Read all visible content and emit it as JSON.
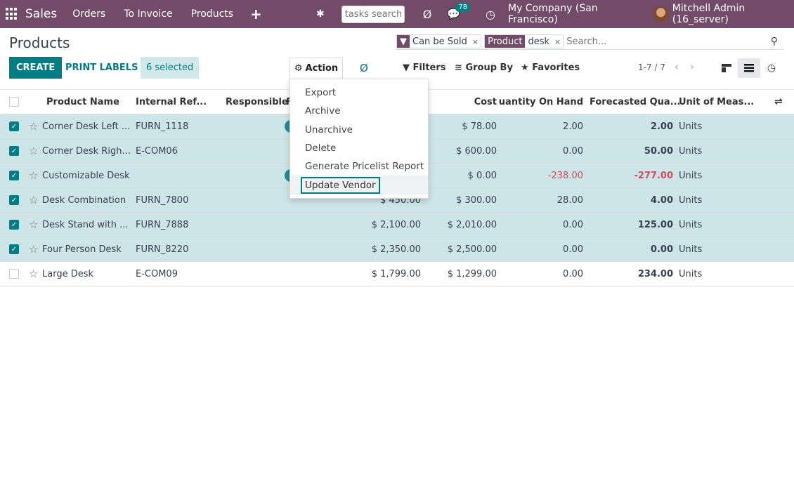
{
  "navbar": {
    "app": "Sales",
    "items": [
      "Orders",
      "To Invoice",
      "Products"
    ],
    "plus": "+",
    "bug": "✱",
    "task_search_placeholder": "tasks search",
    "messages_count": "78",
    "company": "My Company (San Francisco)",
    "user": "Mitchell Admin (16_server)"
  },
  "page_title": "Products",
  "search": {
    "facets": [
      {
        "label": "▼",
        "value": "Can be Sold"
      },
      {
        "label": "Product",
        "value": "desk"
      }
    ],
    "placeholder": "Search..."
  },
  "buttons": {
    "create": "CREATE",
    "print_labels": "PRINT LABELS",
    "selected": "6 selected",
    "action": "Action",
    "filters": "Filters",
    "group_by": "Group By",
    "favorites": "Favorites"
  },
  "pager": "1-7 / 7",
  "columns": {
    "product_name": "Product Name",
    "internal_ref": "Internal Ref...",
    "responsible": "Responsible",
    "f": "F",
    "cost": "Cost",
    "qty_on_hand": "Quantity On Hand",
    "forecasted": "Forecasted Qua...",
    "uom": "Unit of Meas..."
  },
  "rows": [
    {
      "selected": true,
      "name": "Corner Desk Left ...",
      "ref": "FURN_1118",
      "price": "",
      "cost": "$ 78.00",
      "qty": "2.00",
      "forecast": "2.00",
      "uom": "Units",
      "pill": true
    },
    {
      "selected": true,
      "name": "Corner Desk Righ...",
      "ref": "E-COM06",
      "price": "",
      "cost": "$ 600.00",
      "qty": "0.00",
      "forecast": "50.00",
      "uom": "Units",
      "pill": false
    },
    {
      "selected": true,
      "name": "Customizable Desk",
      "ref": "",
      "price": "",
      "cost": "$ 0.00",
      "qty": "-238.00",
      "forecast": "-277.00",
      "uom": "Units",
      "pill": true
    },
    {
      "selected": true,
      "name": "Desk Combination",
      "ref": "FURN_7800",
      "price": "$ 450.00",
      "cost": "$ 300.00",
      "qty": "28.00",
      "forecast": "4.00",
      "uom": "Units",
      "pill": false
    },
    {
      "selected": true,
      "name": "Desk Stand with ...",
      "ref": "FURN_7888",
      "price": "$ 2,100.00",
      "cost": "$ 2,010.00",
      "qty": "0.00",
      "forecast": "125.00",
      "uom": "Units",
      "pill": false
    },
    {
      "selected": true,
      "name": "Four Person Desk",
      "ref": "FURN_8220",
      "price": "$ 2,350.00",
      "cost": "$ 2,500.00",
      "qty": "0.00",
      "forecast": "0.00",
      "uom": "Units",
      "pill": false
    },
    {
      "selected": false,
      "name": "Large Desk",
      "ref": "E-COM09",
      "price": "$ 1,799.00",
      "cost": "$ 1,299.00",
      "qty": "0.00",
      "forecast": "234.00",
      "uom": "Units",
      "pill": false
    }
  ],
  "action_menu": [
    "Export",
    "Archive",
    "Unarchive",
    "Delete",
    "Generate Pricelist Report",
    "Update Vendor"
  ],
  "colors": {
    "brand": "#714b67",
    "accent": "#017e84",
    "selected_row": "#cde5e8",
    "negative": "#d44c59"
  }
}
